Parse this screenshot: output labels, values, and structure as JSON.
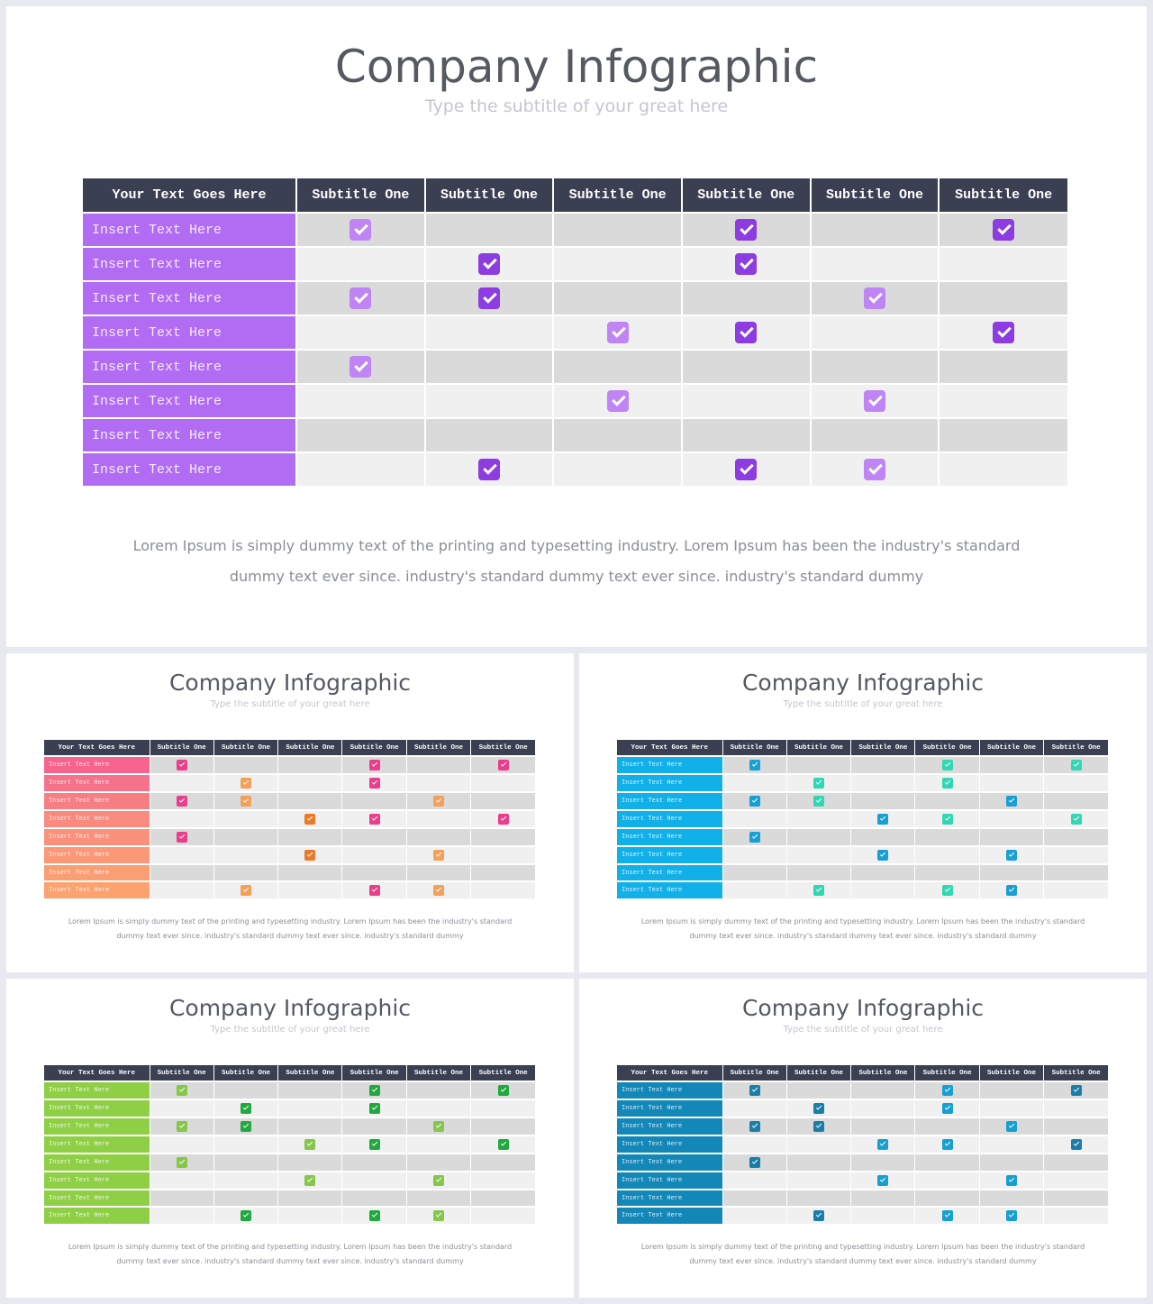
{
  "slides": [
    {
      "id": "main",
      "title": "Company Infographic",
      "subtitle": "Type the subtitle of your great here",
      "header": [
        "Your Text Goes Here",
        "Subtitle One",
        "Subtitle One",
        "Subtitle One",
        "Subtitle One",
        "Subtitle One",
        "Subtitle One"
      ],
      "row_label": "Insert Text Here",
      "label_colors": [
        "#b26cf4",
        "#b26cf4",
        "#b26cf4",
        "#b26cf4",
        "#b26cf4",
        "#b26cf4",
        "#b26cf4",
        "#b26cf4"
      ],
      "check_colors": {
        "a": "#c085f4",
        "b": "#8c3ce0"
      },
      "rows": [
        [
          "a",
          "",
          "",
          "b",
          "",
          "b"
        ],
        [
          "",
          "b",
          "",
          "b",
          "",
          ""
        ],
        [
          "a",
          "b",
          "",
          "",
          "a",
          ""
        ],
        [
          "",
          "",
          "a",
          "b",
          "",
          "b"
        ],
        [
          "a",
          "",
          "",
          "",
          "",
          ""
        ],
        [
          "",
          "",
          "a",
          "",
          "a",
          ""
        ],
        [
          "",
          "",
          "",
          "",
          "",
          ""
        ],
        [
          "",
          "b",
          "",
          "b",
          "a",
          ""
        ]
      ],
      "body_lines": [
        "Lorem Ipsum is simply dummy text of the printing and typesetting industry.  Lorem Ipsum has been the industry's standard",
        "dummy text ever since. industry's standard dummy text ever since. industry's standard dummy"
      ]
    },
    {
      "id": "pink",
      "title": "Company Infographic",
      "subtitle": "Type the subtitle of your great here",
      "header": [
        "Your Text Goes Here",
        "Subtitle One",
        "Subtitle One",
        "Subtitle One",
        "Subtitle One",
        "Subtitle One",
        "Subtitle One"
      ],
      "row_label": "Insert Text Here",
      "label_colors": [
        "#f5638e",
        "#f6728a",
        "#f77f84",
        "#f88a80",
        "#f9917c",
        "#fa9877",
        "#fa9e74",
        "#fba270"
      ],
      "check_colors": {
        "a": "#e83e8c",
        "b": "#f2a05a",
        "c": "#e87a2a"
      },
      "rows": [
        [
          "a",
          "",
          "",
          "a",
          "",
          "a"
        ],
        [
          "",
          "b",
          "",
          "a",
          "",
          ""
        ],
        [
          "a",
          "b",
          "",
          "",
          "b",
          ""
        ],
        [
          "",
          "",
          "c",
          "a",
          "",
          "a"
        ],
        [
          "a",
          "",
          "",
          "",
          "",
          ""
        ],
        [
          "",
          "",
          "c",
          "",
          "b",
          ""
        ],
        [
          "",
          "",
          "",
          "",
          "",
          ""
        ],
        [
          "",
          "b",
          "",
          "a",
          "b",
          ""
        ]
      ],
      "body_lines": [
        "Lorem Ipsum is simply dummy text of the printing and typesetting industry.  Lorem Ipsum has been the industry's standard",
        "dummy text ever since. industry's standard dummy text ever since. industry's standard dummy"
      ]
    },
    {
      "id": "cyan",
      "title": "Company Infographic",
      "subtitle": "Type the subtitle of your great here",
      "header": [
        "Your Text Goes Here",
        "Subtitle One",
        "Subtitle One",
        "Subtitle One",
        "Subtitle One",
        "Subtitle One",
        "Subtitle One"
      ],
      "row_label": "Insert Text Here",
      "label_colors": [
        "#12b0e8",
        "#12b0e8",
        "#12b0e8",
        "#12b0e8",
        "#12b0e8",
        "#12b0e8",
        "#12b0e8",
        "#12b0e8"
      ],
      "check_colors": {
        "a": "#1a9fd2",
        "b": "#33d6b2"
      },
      "rows": [
        [
          "a",
          "",
          "",
          "b",
          "",
          "b"
        ],
        [
          "",
          "b",
          "",
          "b",
          "",
          ""
        ],
        [
          "a",
          "b",
          "",
          "",
          "a",
          ""
        ],
        [
          "",
          "",
          "a",
          "b",
          "",
          "b"
        ],
        [
          "a",
          "",
          "",
          "",
          "",
          ""
        ],
        [
          "",
          "",
          "a",
          "",
          "a",
          ""
        ],
        [
          "",
          "",
          "",
          "",
          "",
          ""
        ],
        [
          "",
          "b",
          "",
          "b",
          "a",
          ""
        ]
      ],
      "body_lines": [
        "Lorem Ipsum is simply dummy text of the printing and typesetting industry.  Lorem Ipsum has been the industry's standard",
        "dummy text ever since. industry's standard dummy text ever since. industry's standard dummy"
      ]
    },
    {
      "id": "green",
      "title": "Company Infographic",
      "subtitle": "Type the subtitle of your great here",
      "header": [
        "Your Text Goes Here",
        "Subtitle One",
        "Subtitle One",
        "Subtitle One",
        "Subtitle One",
        "Subtitle One",
        "Subtitle One"
      ],
      "row_label": "Insert Text Here",
      "label_colors": [
        "#8fcf45",
        "#8fcf45",
        "#8fcf45",
        "#8fcf45",
        "#8fcf45",
        "#8fcf45",
        "#8fcf45",
        "#8fcf45"
      ],
      "check_colors": {
        "a": "#86c64a",
        "b": "#21a840"
      },
      "rows": [
        [
          "a",
          "",
          "",
          "b",
          "",
          "b"
        ],
        [
          "",
          "b",
          "",
          "b",
          "",
          ""
        ],
        [
          "a",
          "b",
          "",
          "",
          "a",
          ""
        ],
        [
          "",
          "",
          "a",
          "b",
          "",
          "b"
        ],
        [
          "a",
          "",
          "",
          "",
          "",
          ""
        ],
        [
          "",
          "",
          "a",
          "",
          "a",
          ""
        ],
        [
          "",
          "",
          "",
          "",
          "",
          ""
        ],
        [
          "",
          "b",
          "",
          "b",
          "a",
          ""
        ]
      ],
      "body_lines": [
        "Lorem Ipsum is simply dummy text of the printing and typesetting industry.  Lorem Ipsum has been the industry's standard",
        "dummy text ever since. industry's standard dummy text ever since. industry's standard dummy"
      ]
    },
    {
      "id": "teal",
      "title": "Company Infographic",
      "subtitle": "Type the subtitle of your great here",
      "header": [
        "Your Text Goes Here",
        "Subtitle One",
        "Subtitle One",
        "Subtitle One",
        "Subtitle One",
        "Subtitle One",
        "Subtitle One"
      ],
      "row_label": "Insert Text Here",
      "label_colors": [
        "#1287b8",
        "#1287b8",
        "#1287b8",
        "#1287b8",
        "#1287b8",
        "#1287b8",
        "#1287b8",
        "#1287b8"
      ],
      "check_colors": {
        "a": "#1c7ea8",
        "b": "#16a0d0"
      },
      "rows": [
        [
          "a",
          "",
          "",
          "b",
          "",
          "a"
        ],
        [
          "",
          "a",
          "",
          "b",
          "",
          ""
        ],
        [
          "a",
          "a",
          "",
          "",
          "b",
          ""
        ],
        [
          "",
          "",
          "b",
          "b",
          "",
          "a"
        ],
        [
          "a",
          "",
          "",
          "",
          "",
          ""
        ],
        [
          "",
          "",
          "b",
          "",
          "b",
          ""
        ],
        [
          "",
          "",
          "",
          "",
          "",
          ""
        ],
        [
          "",
          "a",
          "",
          "b",
          "b",
          ""
        ]
      ],
      "body_lines": [
        "Lorem Ipsum is simply dummy text of the printing and typesetting industry.  Lorem Ipsum has been the industry's standard",
        "dummy text ever since. industry's standard dummy text ever since. industry's standard dummy"
      ]
    }
  ]
}
